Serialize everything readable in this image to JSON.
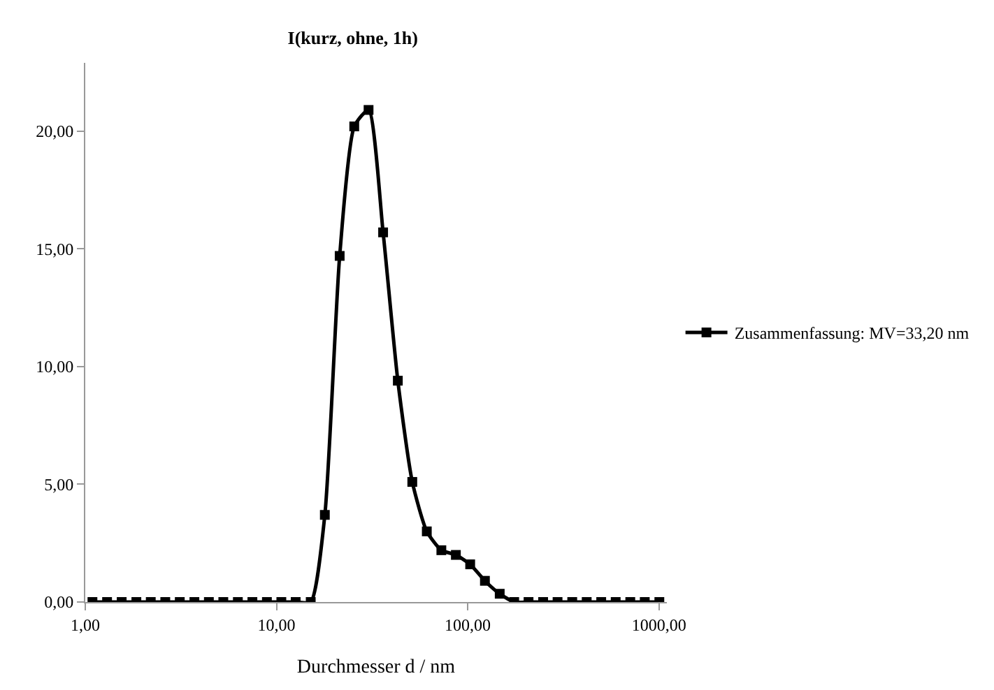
{
  "chart_data": {
    "type": "line",
    "title": "I(kurz, ohne, 1h)",
    "xlabel": "Durchmesser d / nm",
    "x": [
      1.09,
      1.3,
      1.55,
      1.85,
      2.2,
      2.62,
      3.12,
      3.72,
      4.43,
      5.27,
      6.28,
      7.48,
      8.91,
      10.6,
      12.6,
      15.1,
      17.9,
      21.4,
      25.5,
      30.3,
      36.1,
      43.1,
      51.3,
      61.1,
      72.8,
      86.7,
      103,
      123,
      147,
      175,
      208,
      248,
      295,
      352,
      419,
      499,
      594,
      708,
      843,
      1005
    ],
    "series": [
      {
        "name": "Zusammenfassung: MV=33,20 nm",
        "color": "#000000",
        "values": [
          0,
          0,
          0,
          0,
          0,
          0,
          0,
          0,
          0,
          0,
          0,
          0,
          0,
          0,
          0,
          0,
          3.7,
          14.7,
          20.2,
          20.9,
          15.7,
          9.4,
          5.1,
          3.0,
          2.2,
          2.0,
          1.6,
          0.9,
          0.35,
          0,
          0,
          0,
          0,
          0,
          0,
          0,
          0,
          0,
          0,
          0
        ]
      }
    ],
    "log": "x",
    "xlim": [
      1,
      1100
    ],
    "xticks": [
      {
        "value": 1,
        "label": "1,00"
      },
      {
        "value": 10,
        "label": "10,00"
      },
      {
        "value": 100,
        "label": "100,00"
      },
      {
        "value": 1000,
        "label": "1000,00"
      }
    ],
    "ylim": [
      0,
      22.9
    ],
    "yticks": [
      {
        "value": 0,
        "label": "0,00"
      },
      {
        "value": 5,
        "label": "5,00"
      },
      {
        "value": 10,
        "label": "10,00"
      },
      {
        "value": 15,
        "label": "15,00"
      },
      {
        "value": 20,
        "label": "20,00"
      }
    ],
    "grid": false,
    "legend": "right",
    "marker": "square",
    "line_style": "solid"
  }
}
